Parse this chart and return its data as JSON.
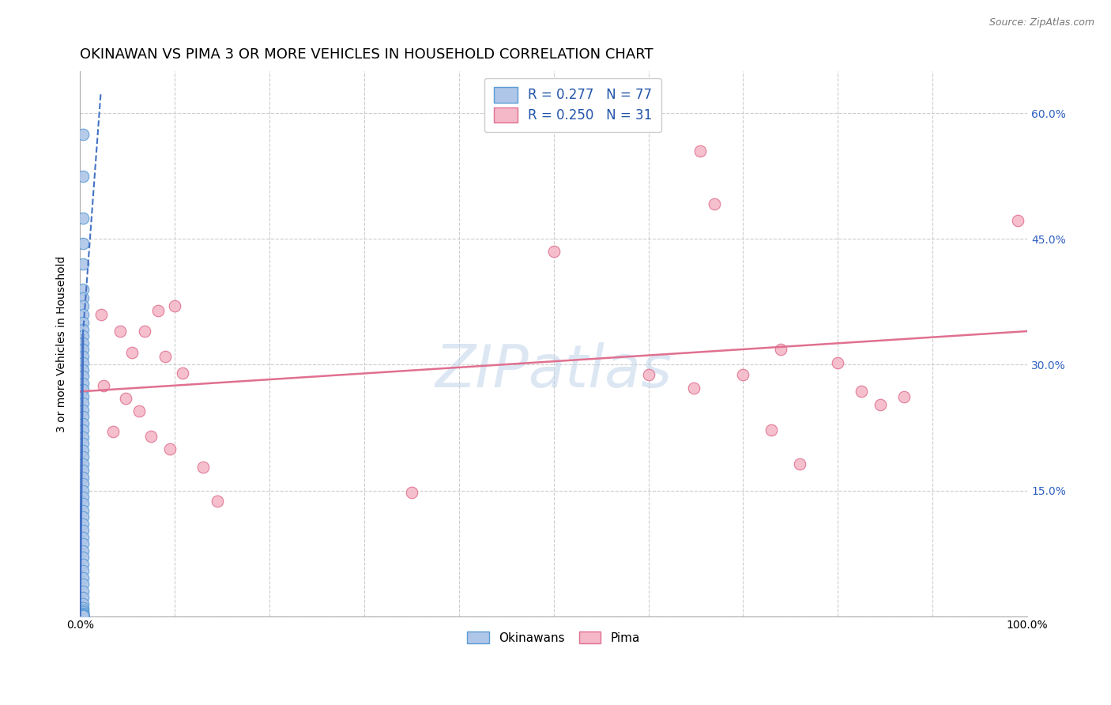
{
  "title": "OKINAWAN VS PIMA 3 OR MORE VEHICLES IN HOUSEHOLD CORRELATION CHART",
  "source": "Source: ZipAtlas.com",
  "ylabel": "3 or more Vehicles in Household",
  "xlim": [
    0,
    1.0
  ],
  "ylim": [
    0,
    0.65
  ],
  "xticks": [
    0.0,
    0.1,
    0.2,
    0.3,
    0.4,
    0.5,
    0.6,
    0.7,
    0.8,
    0.9,
    1.0
  ],
  "xticklabels": [
    "0.0%",
    "",
    "",
    "",
    "",
    "",
    "",
    "",
    "",
    "",
    "100.0%"
  ],
  "yticks": [
    0.0,
    0.15,
    0.3,
    0.45,
    0.6
  ],
  "yticklabels": [
    "",
    "15.0%",
    "30.0%",
    "45.0%",
    "60.0%"
  ],
  "okinawan_color": "#aec6e8",
  "okinawan_edge_color": "#5b9bd5",
  "pima_color": "#f4b8c8",
  "pima_edge_color": "#e07090",
  "blue_line_color": "#4472c4",
  "pink_line_color": "#e07090",
  "watermark": "ZIPatlas",
  "legend_r_okinawan": "R = 0.277",
  "legend_n_okinawan": "N = 77",
  "legend_r_pima": "R = 0.250",
  "legend_n_pima": "N = 31",
  "okinawan_points_x": [
    0.003,
    0.003,
    0.003,
    0.003,
    0.003,
    0.003,
    0.003,
    0.003,
    0.003,
    0.003,
    0.003,
    0.003,
    0.003,
    0.003,
    0.003,
    0.003,
    0.003,
    0.003,
    0.003,
    0.003,
    0.003,
    0.003,
    0.003,
    0.003,
    0.003,
    0.003,
    0.003,
    0.003,
    0.003,
    0.003,
    0.003,
    0.003,
    0.003,
    0.003,
    0.003,
    0.003,
    0.003,
    0.003,
    0.003,
    0.003,
    0.003,
    0.003,
    0.003,
    0.003,
    0.003,
    0.003,
    0.003,
    0.003,
    0.003,
    0.003,
    0.003,
    0.003,
    0.003,
    0.003,
    0.003,
    0.003,
    0.003,
    0.003,
    0.003,
    0.003,
    0.003,
    0.003,
    0.003,
    0.003,
    0.003,
    0.003,
    0.003,
    0.003,
    0.003,
    0.003,
    0.003,
    0.003,
    0.003,
    0.003,
    0.003,
    0.003,
    0.003
  ],
  "okinawan_points_y": [
    0.575,
    0.525,
    0.475,
    0.445,
    0.42,
    0.39,
    0.38,
    0.37,
    0.36,
    0.35,
    0.342,
    0.334,
    0.326,
    0.318,
    0.31,
    0.302,
    0.294,
    0.286,
    0.278,
    0.27,
    0.262,
    0.254,
    0.246,
    0.238,
    0.23,
    0.222,
    0.214,
    0.206,
    0.198,
    0.19,
    0.182,
    0.174,
    0.166,
    0.158,
    0.15,
    0.142,
    0.134,
    0.126,
    0.118,
    0.11,
    0.102,
    0.094,
    0.086,
    0.078,
    0.07,
    0.062,
    0.054,
    0.046,
    0.038,
    0.03,
    0.022,
    0.015,
    0.01,
    0.007,
    0.005,
    0.003,
    0.002,
    0.001,
    0.001,
    0.001,
    0.001,
    0.001,
    0.001,
    0.001,
    0.001,
    0.001,
    0.001,
    0.001,
    0.001,
    0.001,
    0.001,
    0.001,
    0.001,
    0.001,
    0.001,
    0.001,
    0.001
  ],
  "pima_points_x": [
    0.022,
    0.025,
    0.035,
    0.042,
    0.048,
    0.055,
    0.062,
    0.068,
    0.075,
    0.082,
    0.09,
    0.095,
    0.1,
    0.108,
    0.13,
    0.145,
    0.35,
    0.5,
    0.6,
    0.648,
    0.655,
    0.67,
    0.7,
    0.73,
    0.74,
    0.76,
    0.8,
    0.825,
    0.845,
    0.87,
    0.99
  ],
  "pima_points_y": [
    0.36,
    0.275,
    0.22,
    0.34,
    0.26,
    0.315,
    0.245,
    0.34,
    0.215,
    0.365,
    0.31,
    0.2,
    0.37,
    0.29,
    0.178,
    0.137,
    0.148,
    0.435,
    0.288,
    0.272,
    0.555,
    0.492,
    0.288,
    0.222,
    0.318,
    0.182,
    0.302,
    0.268,
    0.252,
    0.262,
    0.472
  ],
  "pima_trend_x_start": 0.0,
  "pima_trend_x_end": 1.0,
  "pima_trend_y_start": 0.268,
  "pima_trend_y_end": 0.34,
  "background_color": "#ffffff",
  "grid_color": "#cccccc",
  "right_yaxis_color": "#3060c0",
  "title_fontsize": 13,
  "label_fontsize": 10
}
